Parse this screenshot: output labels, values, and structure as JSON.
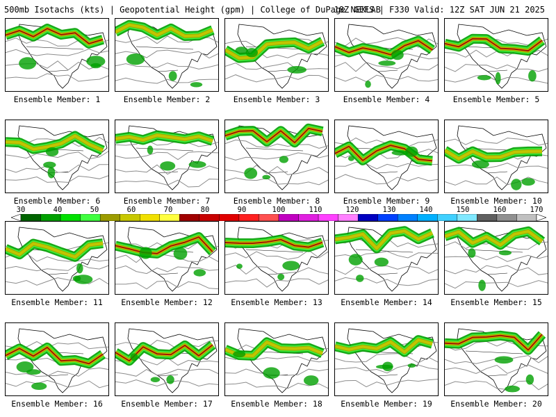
{
  "header": {
    "title_left": "500mb Isotachs (kts) | Geopotential Height (gpm) | College of DuPage NEXLAB",
    "title_right": "18Z GEFS | F330 Valid: 12Z SAT JUN 21 2025"
  },
  "panels": [
    {
      "label": "Ensemble Member: 1"
    },
    {
      "label": "Ensemble Member: 2"
    },
    {
      "label": "Ensemble Member: 3"
    },
    {
      "label": "Ensemble Member: 4"
    },
    {
      "label": "Ensemble Member: 5"
    },
    {
      "label": "Ensemble Member: 6"
    },
    {
      "label": "Ensemble Member: 7"
    },
    {
      "label": "Ensemble Member: 8"
    },
    {
      "label": "Ensemble Member: 9"
    },
    {
      "label": "Ensemble Member: 10"
    },
    {
      "label": "Ensemble Member: 11"
    },
    {
      "label": "Ensemble Member: 12"
    },
    {
      "label": "Ensemble Member: 13"
    },
    {
      "label": "Ensemble Member: 14"
    },
    {
      "label": "Ensemble Member: 15"
    },
    {
      "label": "Ensemble Member: 16"
    },
    {
      "label": "Ensemble Member: 17"
    },
    {
      "label": "Ensemble Member: 18"
    },
    {
      "label": "Ensemble Member: 19"
    },
    {
      "label": "Ensemble Member: 20"
    }
  ],
  "colorbar": {
    "labels": [
      "30",
      "40",
      "50",
      "60",
      "70",
      "80",
      "90",
      "100",
      "110",
      "120",
      "130",
      "140",
      "150",
      "160",
      "170"
    ],
    "colors": [
      "#006400",
      "#00a000",
      "#00e000",
      "#40ff40",
      "#9c9c00",
      "#c8c800",
      "#f0e000",
      "#ffff40",
      "#a00000",
      "#c80000",
      "#e00000",
      "#ff2020",
      "#ff5050",
      "#c000c0",
      "#e020e0",
      "#ff40ff",
      "#ff80ff",
      "#0000c0",
      "#0040ff",
      "#0080ff",
      "#00b0ff",
      "#40d0ff",
      "#80e8ff",
      "#606060",
      "#909090",
      "#c0c0c0"
    ]
  }
}
